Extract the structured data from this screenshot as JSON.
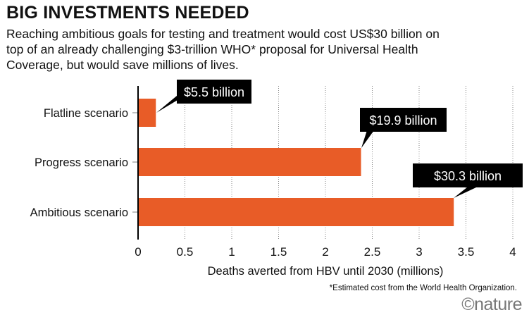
{
  "title": "BIG INVESTMENTS NEEDED",
  "subtitle": "Reaching ambitious goals for testing and treatment would cost US$30 billion on top of an already challenging $3-trillion WHO* proposal for Universal Health Coverage, but would save millions of lives.",
  "footnote": "*Estimated cost from the World Health Organization.",
  "logo": "©nature",
  "colors": {
    "bar": "#e85c27",
    "label_bg": "#000000"
  },
  "chart_data": {
    "type": "bar",
    "orientation": "horizontal",
    "categories": [
      "Flatline scenario",
      "Progress scenario",
      "Ambitious scenario"
    ],
    "values": [
      0.19,
      2.38,
      3.37
    ],
    "annotations": [
      "$5.5 billion",
      "$19.9 billion",
      "$30.3 billion"
    ],
    "xlabel": "Deaths averted from HBV until 2030 (millions)",
    "ylabel": "",
    "xlim": [
      0,
      4
    ],
    "xticks": [
      "0",
      "0.5",
      "1",
      "1.5",
      "2",
      "2.5",
      "3",
      "3.5",
      "4"
    ],
    "grid": "vertical dotted"
  }
}
